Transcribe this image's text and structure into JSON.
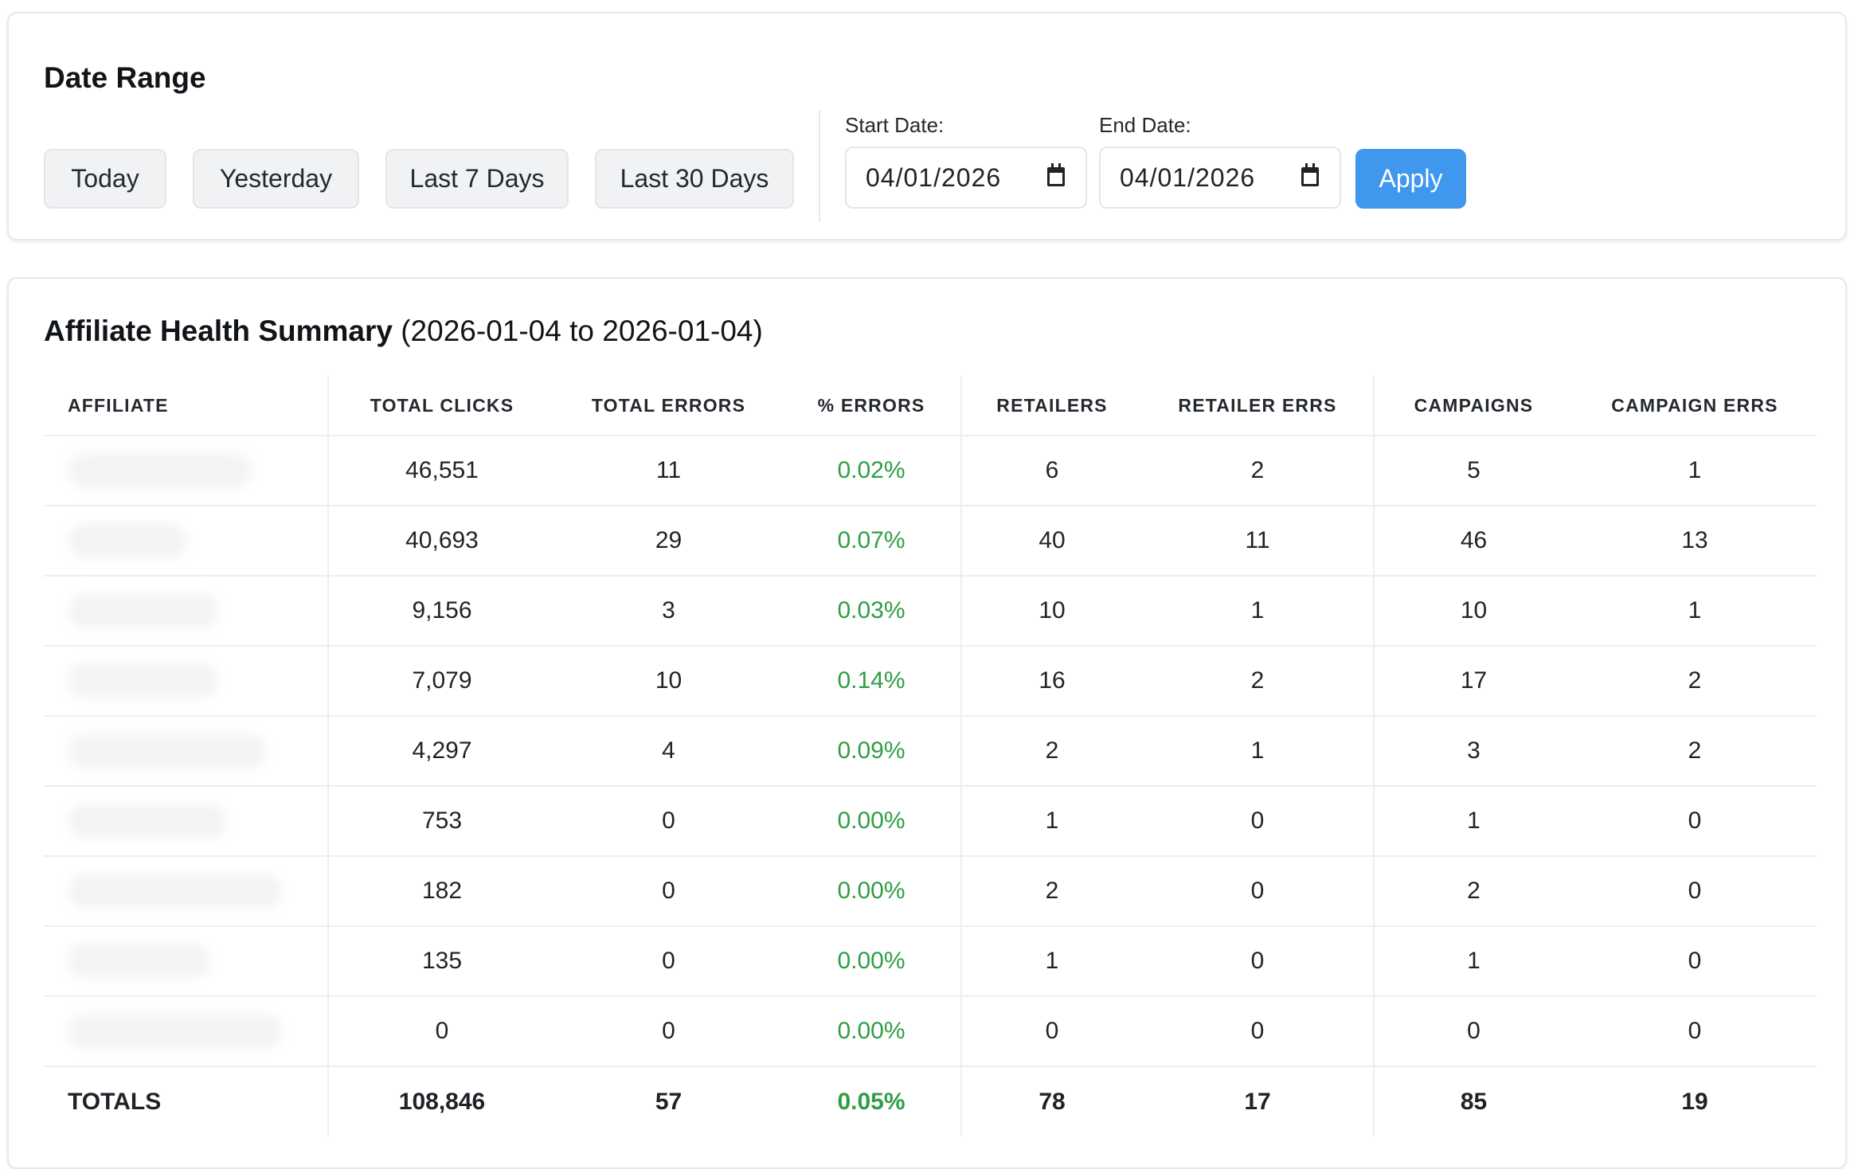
{
  "date_range": {
    "title": "Date Range",
    "presets": [
      "Today",
      "Yesterday",
      "Last 7 Days",
      "Last 30 Days"
    ],
    "start_label": "Start Date:",
    "start_value": "04/01/2026",
    "end_label": "End Date:",
    "end_value": "04/01/2026",
    "apply_label": "Apply"
  },
  "summary": {
    "title": "Affiliate Health Summary",
    "range_text": "(2026-01-04 to 2026-01-04)",
    "columns": [
      "AFFILIATE",
      "TOTAL CLICKS",
      "TOTAL ERRORS",
      "% ERRORS",
      "RETAILERS",
      "RETAILER ERRS",
      "CAMPAIGNS",
      "CAMPAIGN ERRS"
    ],
    "rows": [
      {
        "affiliate": "",
        "clicks": "46,551",
        "errors": "11",
        "pct": "0.02%",
        "retailers": "6",
        "retailer_errs": "2",
        "campaigns": "5",
        "campaign_errs": "1"
      },
      {
        "affiliate": "",
        "clicks": "40,693",
        "errors": "29",
        "pct": "0.07%",
        "retailers": "40",
        "retailer_errs": "11",
        "campaigns": "46",
        "campaign_errs": "13"
      },
      {
        "affiliate": "",
        "clicks": "9,156",
        "errors": "3",
        "pct": "0.03%",
        "retailers": "10",
        "retailer_errs": "1",
        "campaigns": "10",
        "campaign_errs": "1"
      },
      {
        "affiliate": "",
        "clicks": "7,079",
        "errors": "10",
        "pct": "0.14%",
        "retailers": "16",
        "retailer_errs": "2",
        "campaigns": "17",
        "campaign_errs": "2"
      },
      {
        "affiliate": "",
        "clicks": "4,297",
        "errors": "4",
        "pct": "0.09%",
        "retailers": "2",
        "retailer_errs": "1",
        "campaigns": "3",
        "campaign_errs": "2"
      },
      {
        "affiliate": "",
        "clicks": "753",
        "errors": "0",
        "pct": "0.00%",
        "retailers": "1",
        "retailer_errs": "0",
        "campaigns": "1",
        "campaign_errs": "0"
      },
      {
        "affiliate": "",
        "clicks": "182",
        "errors": "0",
        "pct": "0.00%",
        "retailers": "2",
        "retailer_errs": "0",
        "campaigns": "2",
        "campaign_errs": "0"
      },
      {
        "affiliate": "",
        "clicks": "135",
        "errors": "0",
        "pct": "0.00%",
        "retailers": "1",
        "retailer_errs": "0",
        "campaigns": "1",
        "campaign_errs": "0"
      },
      {
        "affiliate": "",
        "clicks": "0",
        "errors": "0",
        "pct": "0.00%",
        "retailers": "0",
        "retailer_errs": "0",
        "campaigns": "0",
        "campaign_errs": "0"
      }
    ],
    "totals": {
      "label": "TOTALS",
      "clicks": "108,846",
      "errors": "57",
      "pct": "0.05%",
      "retailers": "78",
      "retailer_errs": "17",
      "campaigns": "85",
      "campaign_errs": "19"
    }
  },
  "colors": {
    "accent": "#3f97ee",
    "success": "#2f9e44",
    "border": "#e6e8eb"
  }
}
